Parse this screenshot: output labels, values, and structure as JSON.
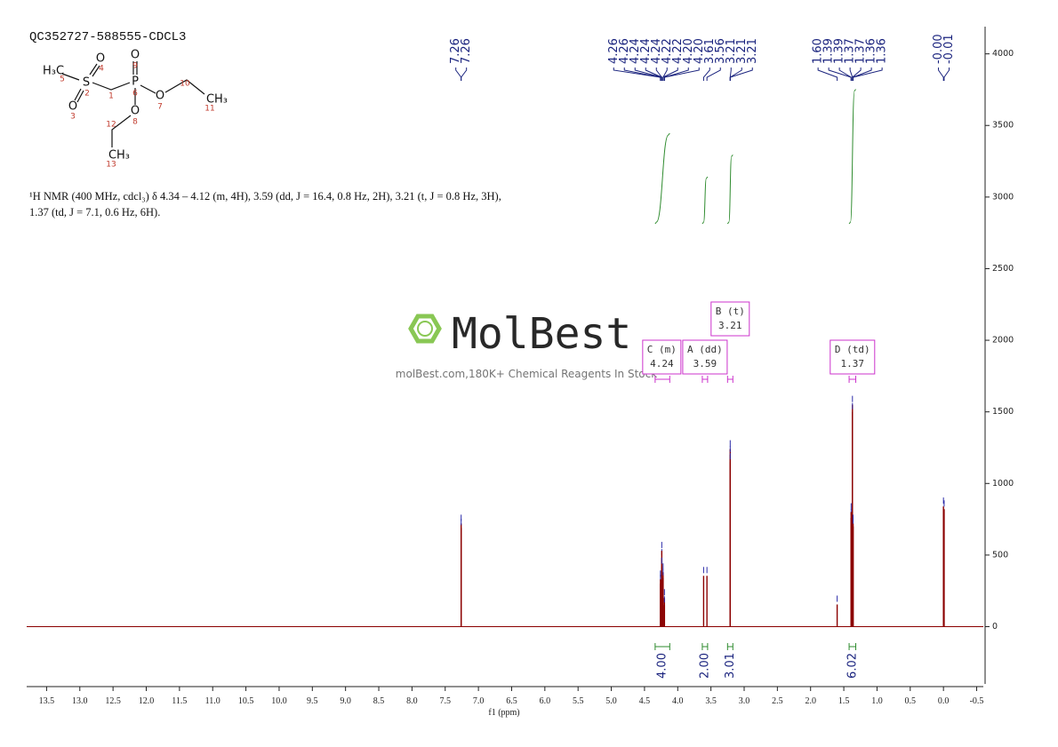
{
  "title": "QC352727-588555-CDCL3",
  "molecule": {
    "atoms": [
      "H₃C",
      "O",
      "S",
      "O",
      "P",
      "O",
      "O",
      "O",
      "CH₃",
      "CH₃"
    ],
    "numbers": [
      1,
      2,
      3,
      4,
      5,
      6,
      7,
      8,
      9,
      10,
      11,
      12,
      13
    ]
  },
  "description": [
    "¹H NMR (400 MHz, cdcl₃) δ 4.34 – 4.12 (m, 4H), 3.59 (dd, J = 16.4, 0.8 Hz, 2H), 3.21 (t, J = 0.8 Hz, 3H),",
    "1.37 (td, J = 7.1, 0.6 Hz, 6H)."
  ],
  "watermark": {
    "brand": "MolBest",
    "tagline": "molBest.com,180K+ Chemical Reagents In Stock"
  },
  "chart_data": {
    "type": "nmr",
    "x_label": "f1 (ppm)",
    "xlim": [
      13.8,
      -0.6
    ],
    "xticks": [
      13.5,
      {
        "value": 13,
        "label": "13.0"
      },
      12.5,
      {
        "value": 12,
        "label": "12.0"
      },
      11.5,
      {
        "value": 11,
        "label": "11.0"
      },
      10.5,
      {
        "value": 10,
        "label": "10.0"
      },
      9.5,
      {
        "value": 9,
        "label": "9.0"
      },
      8.5,
      {
        "value": 8,
        "label": "8.0"
      },
      7.5,
      {
        "value": 7,
        "label": "7.0"
      },
      6.5,
      {
        "value": 6,
        "label": "6.0"
      },
      5.5,
      {
        "value": 5,
        "label": "5.0"
      },
      4.5,
      {
        "value": 4,
        "label": "4.0"
      },
      3.5,
      {
        "value": 3,
        "label": "3.0"
      },
      2.5,
      {
        "value": 2,
        "label": "2.0"
      },
      1.5,
      {
        "value": 1,
        "label": "1.0"
      },
      0.5,
      {
        "value": 0,
        "label": "0.0"
      },
      -0.5
    ],
    "ylim": [
      -400,
      4190
    ],
    "yticks": [
      0,
      500,
      1000,
      1500,
      2000,
      2500,
      3000,
      3500,
      4000
    ],
    "color": "#8b0000",
    "marker_color": "#2a2aa8",
    "label_color": "#1a237e",
    "integral_color": "#2e8b2e",
    "multiplet_color": "#cc33cc",
    "peaks": {
      "x": [
        7.26,
        7.26,
        4.26,
        4.26,
        4.24,
        4.24,
        4.24,
        4.22,
        4.22,
        4.2,
        4.2,
        3.61,
        3.56,
        3.21,
        3.21,
        3.21,
        1.6,
        1.39,
        1.39,
        1.37,
        1.37,
        1.36,
        1.36,
        0,
        -0.01
      ],
      "x_labels": [
        "7.26",
        "7.26",
        "4.26",
        "4.26",
        "4.24",
        "4.24",
        "4.24",
        "4.22",
        "4.22",
        "4.20",
        "4.20",
        "3.61",
        "3.56",
        "3.21",
        "3.21",
        "3.21",
        "1.60",
        "1.39",
        "1.39",
        "1.37",
        "1.37",
        "1.36",
        "1.36",
        "-0.00",
        "-0.01"
      ],
      "values": [
        720,
        690,
        300,
        330,
        480,
        530,
        420,
        380,
        340,
        200,
        150,
        355,
        355,
        1240,
        1200,
        1150,
        155,
        760,
        800,
        1550,
        1500,
        720,
        700,
        840,
        820
      ]
    },
    "multiplets": [
      {
        "name": "C (m)",
        "shift": 4.24,
        "range": [
          4.34,
          4.12
        ]
      },
      {
        "name": "A (dd)",
        "shift": 3.59,
        "range": [
          3.63,
          3.55
        ]
      },
      {
        "name": "B (t)",
        "shift": 3.21,
        "range": [
          3.25,
          3.17
        ]
      },
      {
        "name": "D (td)",
        "shift": 1.37,
        "range": [
          1.42,
          1.32
        ]
      }
    ],
    "integrals": {
      "ranges": [
        [
          4.34,
          4.12
        ],
        [
          3.63,
          3.55
        ],
        [
          3.25,
          3.17
        ],
        [
          1.42,
          1.32
        ]
      ],
      "values": [
        4.0,
        2.0,
        3.01,
        6.02
      ],
      "value_labels": [
        "4.00",
        "2.00",
        "3.01",
        "6.02"
      ]
    }
  }
}
